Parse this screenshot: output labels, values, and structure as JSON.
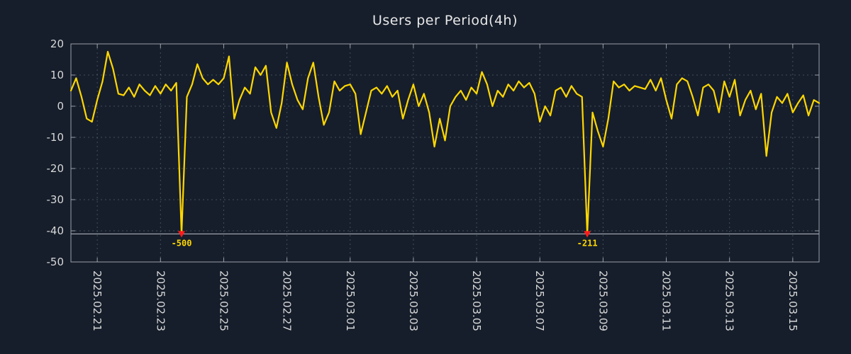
{
  "title": "Users per Period(4h)",
  "colors": {
    "background": "#161e2b",
    "line": "#ffd700",
    "grid": "#7b8794",
    "border": "#9aa0a8",
    "tick_text": "#d8d8d8",
    "title_text": "#e8e8e8",
    "marker": "#ff1a1a",
    "annotation_text": "#ffd700",
    "clip_line": "#c0c6cd"
  },
  "chart_data": {
    "type": "line",
    "title": "Users per Period(4h)",
    "period": "4h",
    "xlabel": "",
    "ylabel": "",
    "ylim": [
      -50,
      20
    ],
    "yticks": [
      20,
      10,
      0,
      -10,
      -20,
      -30,
      -40,
      -50
    ],
    "grid": true,
    "legend": "none",
    "clip_value": -41,
    "xticks": [
      {
        "label": "2025.02.21",
        "i": 5
      },
      {
        "label": "2025.02.23",
        "i": 17
      },
      {
        "label": "2025.02.25",
        "i": 29
      },
      {
        "label": "2025.02.27",
        "i": 41
      },
      {
        "label": "2025.03.01",
        "i": 53
      },
      {
        "label": "2025.03.03",
        "i": 65
      },
      {
        "label": "2025.03.05",
        "i": 77
      },
      {
        "label": "2025.03.07",
        "i": 89
      },
      {
        "label": "2025.03.09",
        "i": 101
      },
      {
        "label": "2025.03.11",
        "i": 113
      },
      {
        "label": "2025.03.13",
        "i": 125
      },
      {
        "label": "2025.03.15",
        "i": 137
      }
    ],
    "series": [
      {
        "name": "users",
        "color": "#ffd700",
        "values": [
          5,
          9,
          3,
          -4,
          -5,
          2,
          8,
          17.5,
          12,
          4,
          3.5,
          6,
          3,
          7,
          5,
          3.5,
          6.5,
          4,
          7,
          5,
          7.5,
          -500,
          3,
          7,
          13.5,
          9,
          7,
          8.5,
          7,
          9,
          16,
          -4,
          2,
          6,
          4,
          12.5,
          10,
          13,
          -2,
          -7,
          1,
          14,
          7,
          2,
          -1,
          9,
          14,
          3,
          -6,
          -2,
          8,
          5,
          6.5,
          7,
          4,
          -9,
          -2,
          5,
          6,
          4,
          6.5,
          3,
          5,
          -4,
          2,
          7,
          0,
          4,
          -2,
          -13,
          -4,
          -11,
          0,
          3,
          5,
          2,
          6,
          4,
          11,
          7,
          0,
          5,
          3,
          7,
          5,
          8,
          6,
          7.5,
          4,
          -5,
          0,
          -3,
          5,
          6,
          3,
          6.5,
          4,
          3,
          -211,
          -2,
          -8,
          -13,
          -4,
          8,
          6,
          7,
          5,
          6.5,
          6,
          5.5,
          8.5,
          5,
          9,
          2,
          -4,
          7,
          9,
          8,
          3,
          -3,
          6,
          7,
          5,
          -2,
          8,
          3,
          8.5,
          -3,
          2,
          5,
          -1,
          4,
          -16,
          -2,
          3,
          1,
          4,
          -2,
          1,
          3.5,
          -3,
          2,
          1
        ]
      }
    ],
    "annotations": [
      {
        "i": 21,
        "value": -500,
        "label": "-500"
      },
      {
        "i": 98,
        "value": -211,
        "label": "-211"
      }
    ]
  }
}
